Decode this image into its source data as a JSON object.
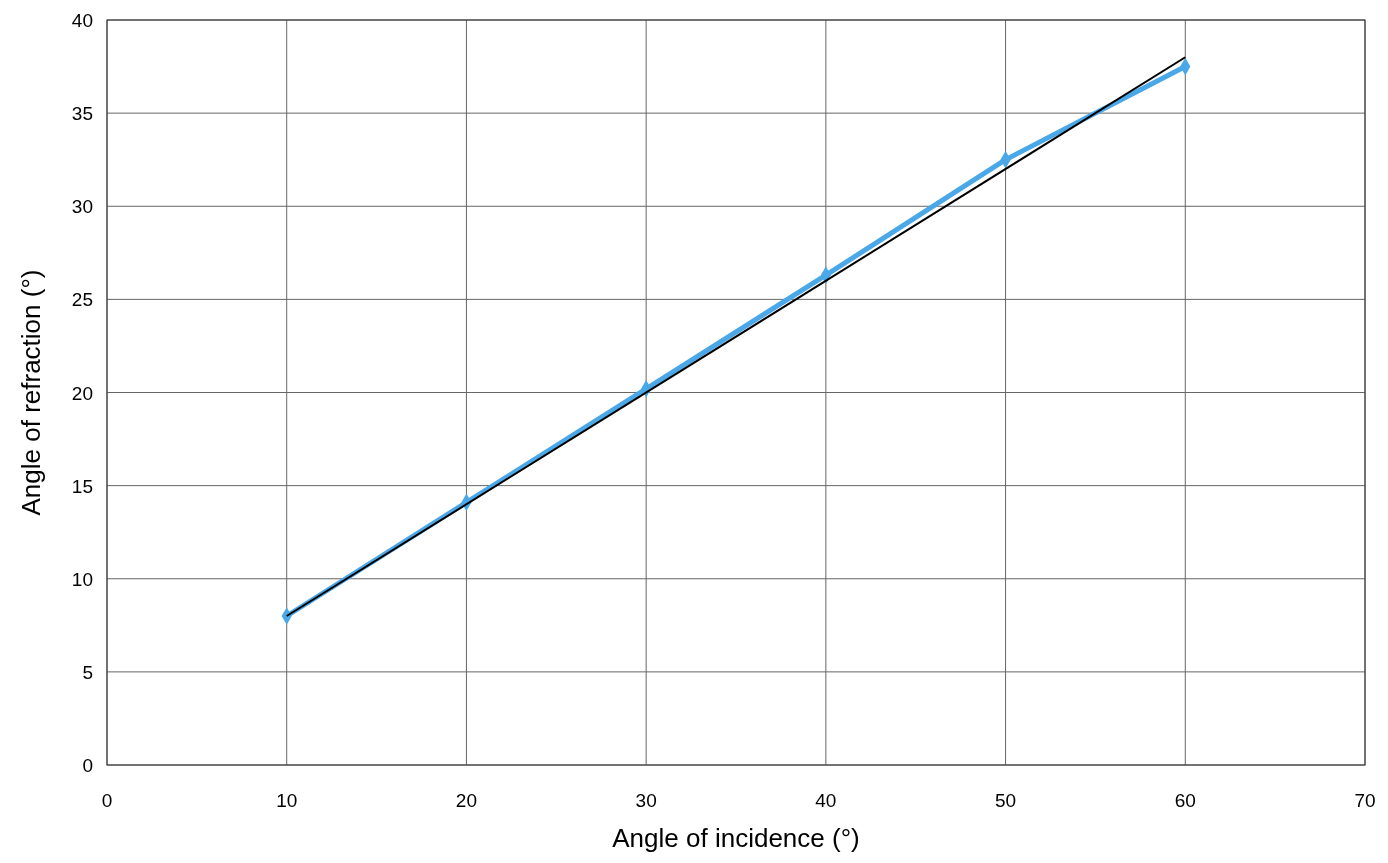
{
  "chart_data": {
    "type": "line",
    "xlabel": "Angle of incidence (°)",
    "ylabel": "Angle of refraction (°)",
    "x": [
      10,
      20,
      30,
      40,
      50,
      60
    ],
    "series": [
      {
        "color": "#4aa8e8",
        "values": [
          8.0,
          14.1,
          20.2,
          26.3,
          32.5,
          37.5
        ],
        "marker": "diamond"
      },
      {
        "color": "#000000",
        "x": [
          10,
          60
        ],
        "values": [
          8,
          38
        ],
        "marker": "none"
      }
    ],
    "xlim": [
      0,
      70
    ],
    "ylim": [
      0,
      40
    ],
    "xticks": [
      0,
      10,
      20,
      30,
      40,
      50,
      60,
      70
    ],
    "yticks": [
      0,
      5,
      10,
      15,
      20,
      25,
      30,
      35,
      40
    ],
    "grid": true
  }
}
